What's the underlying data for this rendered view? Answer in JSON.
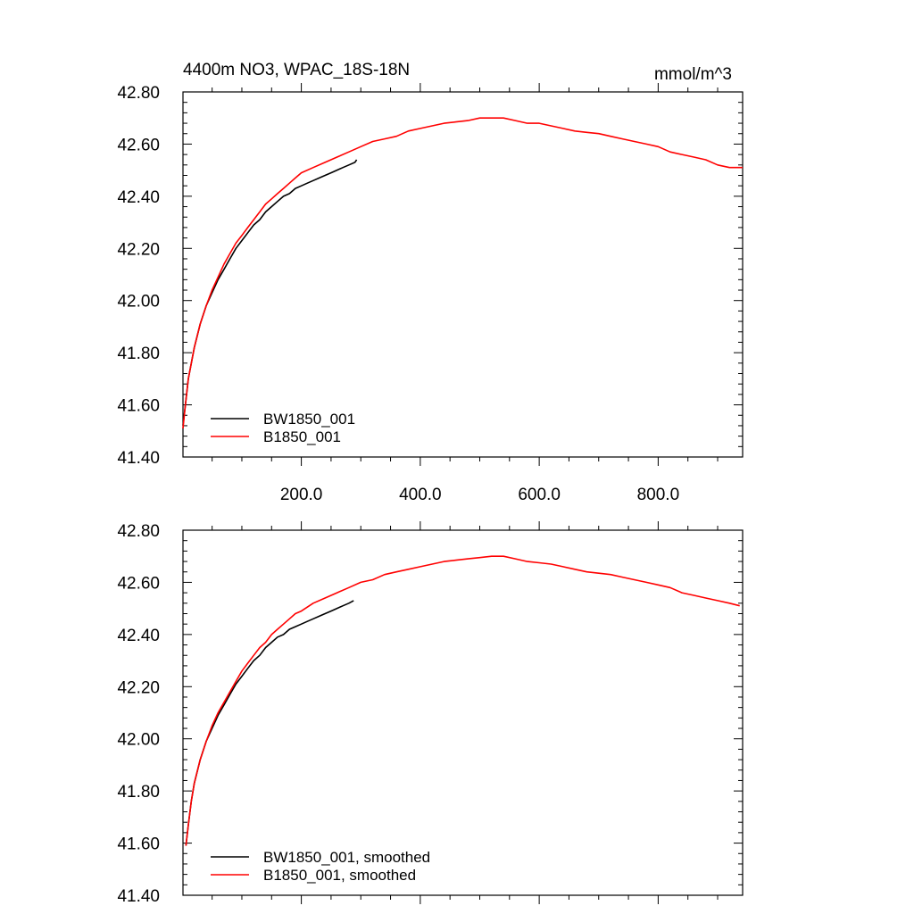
{
  "chart_data": [
    {
      "type": "line",
      "title": "4400m NO3, WPAC_18S-18N",
      "units": "mmol/m^3",
      "xlim": [
        1,
        942
      ],
      "ylim": [
        41.4,
        42.8
      ],
      "yticks": [
        "42.80",
        "42.60",
        "42.40",
        "42.20",
        "42.00",
        "41.80",
        "41.60",
        "41.40"
      ],
      "xticks": [
        "200.0",
        "400.0",
        "600.0",
        "800.0"
      ],
      "legend_position": "bottom-left",
      "series": [
        {
          "name": "BW1850_001",
          "color": "#000000",
          "x": [
            1,
            5,
            10,
            20,
            30,
            40,
            50,
            60,
            70,
            80,
            90,
            100,
            110,
            120,
            130,
            140,
            150,
            160,
            170,
            180,
            190,
            200,
            210,
            220,
            230,
            240,
            250,
            260,
            270,
            280,
            290,
            293
          ],
          "y": [
            41.52,
            41.6,
            41.7,
            41.82,
            41.91,
            41.98,
            42.03,
            42.08,
            42.12,
            42.16,
            42.2,
            42.23,
            42.26,
            42.29,
            42.31,
            42.34,
            42.36,
            42.38,
            42.4,
            42.41,
            42.43,
            42.44,
            42.45,
            42.46,
            42.47,
            42.48,
            42.49,
            42.5,
            42.51,
            42.52,
            42.53,
            42.54
          ]
        },
        {
          "name": "B1850_001",
          "color": "#ff0000",
          "x": [
            1,
            5,
            10,
            20,
            30,
            40,
            50,
            60,
            70,
            80,
            90,
            100,
            110,
            120,
            130,
            140,
            150,
            160,
            170,
            180,
            190,
            200,
            220,
            240,
            260,
            280,
            300,
            320,
            340,
            360,
            380,
            400,
            420,
            440,
            460,
            480,
            500,
            520,
            540,
            560,
            580,
            600,
            620,
            640,
            660,
            680,
            700,
            720,
            740,
            760,
            780,
            800,
            820,
            840,
            860,
            880,
            900,
            920,
            942
          ],
          "y": [
            41.51,
            41.6,
            41.7,
            41.82,
            41.91,
            41.98,
            42.04,
            42.09,
            42.14,
            42.18,
            42.22,
            42.25,
            42.28,
            42.31,
            42.34,
            42.37,
            42.39,
            42.41,
            42.43,
            42.45,
            42.47,
            42.49,
            42.51,
            42.53,
            42.55,
            42.57,
            42.59,
            42.61,
            42.62,
            42.63,
            42.65,
            42.66,
            42.67,
            42.68,
            42.685,
            42.69,
            42.7,
            42.7,
            42.7,
            42.69,
            42.68,
            42.68,
            42.67,
            42.66,
            42.65,
            42.645,
            42.64,
            42.63,
            42.62,
            42.61,
            42.6,
            42.59,
            42.57,
            42.56,
            42.55,
            42.54,
            42.52,
            42.51,
            42.51
          ]
        }
      ]
    },
    {
      "type": "line",
      "title": "",
      "xlim": [
        1,
        942
      ],
      "ylim": [
        41.4,
        42.8
      ],
      "yticks": [
        "42.80",
        "42.60",
        "42.40",
        "42.20",
        "42.00",
        "41.80",
        "41.60",
        "41.40"
      ],
      "legend_position": "bottom-left",
      "series": [
        {
          "name": "BW1850_001, smoothed",
          "color": "#000000",
          "x": [
            6,
            10,
            15,
            20,
            30,
            40,
            50,
            60,
            70,
            80,
            90,
            100,
            110,
            120,
            130,
            140,
            150,
            160,
            170,
            180,
            190,
            200,
            210,
            220,
            230,
            240,
            250,
            260,
            270,
            280,
            288
          ],
          "y": [
            41.59,
            41.67,
            41.76,
            41.83,
            41.92,
            41.99,
            42.04,
            42.09,
            42.13,
            42.17,
            42.21,
            42.24,
            42.27,
            42.3,
            42.32,
            42.35,
            42.37,
            42.39,
            42.4,
            42.42,
            42.43,
            42.44,
            42.45,
            42.46,
            42.47,
            42.48,
            42.49,
            42.5,
            42.51,
            42.52,
            42.53
          ]
        },
        {
          "name": "B1850_001, smoothed",
          "color": "#ff0000",
          "x": [
            6,
            10,
            15,
            20,
            30,
            40,
            50,
            60,
            70,
            80,
            90,
            100,
            110,
            120,
            130,
            140,
            150,
            160,
            170,
            180,
            190,
            200,
            220,
            240,
            260,
            280,
            300,
            320,
            340,
            360,
            380,
            400,
            420,
            440,
            460,
            480,
            500,
            520,
            540,
            560,
            580,
            600,
            620,
            640,
            660,
            680,
            700,
            720,
            740,
            760,
            780,
            800,
            820,
            840,
            860,
            880,
            900,
            920,
            937
          ],
          "y": [
            41.59,
            41.67,
            41.76,
            41.83,
            41.92,
            41.99,
            42.05,
            42.1,
            42.14,
            42.18,
            42.22,
            42.26,
            42.29,
            42.32,
            42.35,
            42.37,
            42.4,
            42.42,
            42.44,
            42.46,
            42.48,
            42.49,
            42.52,
            42.54,
            42.56,
            42.58,
            42.6,
            42.61,
            42.63,
            42.64,
            42.65,
            42.66,
            42.67,
            42.68,
            42.685,
            42.69,
            42.695,
            42.7,
            42.7,
            42.69,
            42.68,
            42.675,
            42.67,
            42.66,
            42.65,
            42.64,
            42.635,
            42.63,
            42.62,
            42.61,
            42.6,
            42.59,
            42.58,
            42.56,
            42.55,
            42.54,
            42.53,
            42.52,
            42.51
          ]
        }
      ]
    }
  ]
}
